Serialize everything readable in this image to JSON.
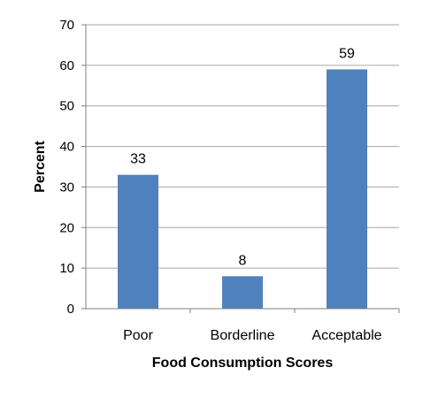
{
  "chart_data": {
    "type": "bar",
    "categories": [
      "Poor",
      "Borderline",
      "Acceptable"
    ],
    "values": [
      33,
      8,
      59
    ],
    "data_labels": [
      "33",
      "8",
      "59"
    ],
    "title": "",
    "xlabel": "Food Consumption Scores",
    "ylabel": "Percent",
    "ylim": [
      0,
      70
    ],
    "yticks": [
      "0",
      "10",
      "20",
      "30",
      "40",
      "50",
      "60",
      "70"
    ],
    "grid": true,
    "legend": "none",
    "bar_color": "#4f81bd"
  }
}
